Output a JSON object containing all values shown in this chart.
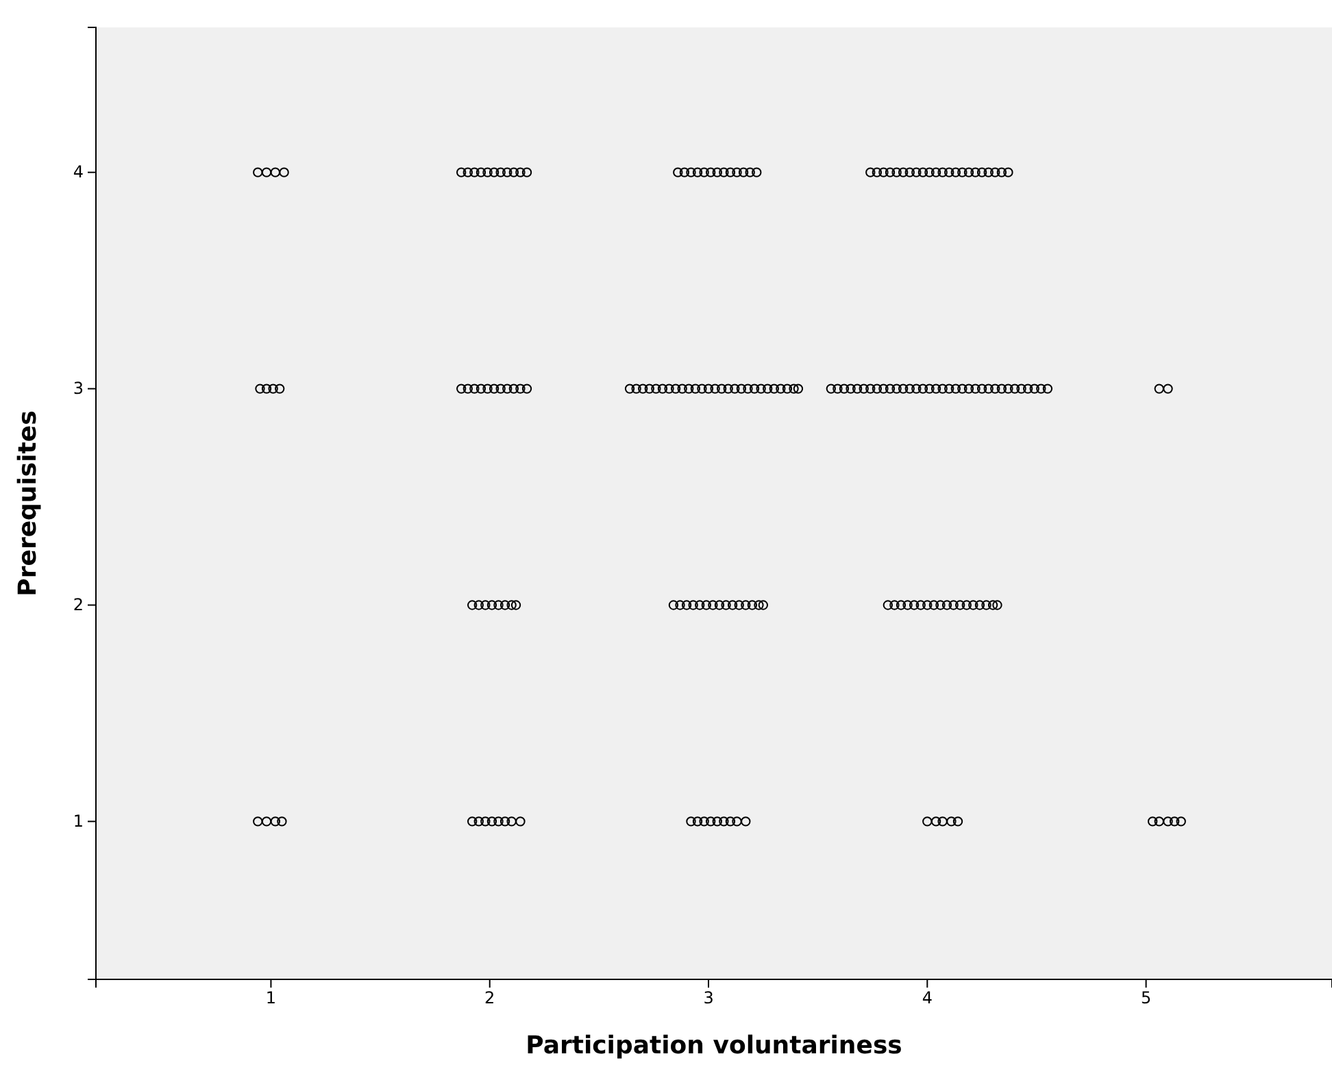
{
  "chart_data": {
    "type": "scatter",
    "xlabel": "Participation voluntariness",
    "ylabel": "Prerequisites",
    "xlim": [
      0.2,
      5.85
    ],
    "ylim": [
      0.27,
      4.67
    ],
    "xticks": [
      1,
      2,
      3,
      4,
      5
    ],
    "yticks": [
      1,
      2,
      3,
      4
    ],
    "marker": "circle",
    "series": [
      {
        "color": "#000000",
        "x": [
          0.94,
          0.98,
          1.02,
          1.06,
          1.87,
          1.9,
          1.93,
          1.96,
          1.99,
          2.02,
          2.05,
          2.08,
          2.11,
          2.14,
          2.17,
          2.86,
          2.89,
          2.92,
          2.95,
          2.98,
          3.01,
          3.04,
          3.07,
          3.1,
          3.13,
          3.16,
          3.19,
          3.22,
          3.74,
          3.77,
          3.8,
          3.83,
          3.86,
          3.89,
          3.92,
          3.95,
          3.98,
          4.01,
          4.04,
          4.07,
          4.1,
          4.13,
          4.16,
          4.19,
          4.22,
          4.25,
          4.28,
          4.31,
          4.34,
          4.37
        ],
        "values": [
          4,
          4,
          4,
          4,
          4,
          4,
          4,
          4,
          4,
          4,
          4,
          4,
          4,
          4,
          4,
          4,
          4,
          4,
          4,
          4,
          4,
          4,
          4,
          4,
          4,
          4,
          4,
          4,
          4,
          4,
          4,
          4,
          4,
          4,
          4,
          4,
          4,
          4,
          4,
          4,
          4,
          4,
          4,
          4,
          4,
          4,
          4,
          4,
          4,
          4
        ]
      },
      {
        "color": "#000000",
        "x": [
          0.95,
          0.98,
          1.01,
          1.04,
          1.87,
          1.9,
          1.93,
          1.96,
          1.99,
          2.02,
          2.05,
          2.08,
          2.11,
          2.14,
          2.17,
          2.64,
          2.67,
          2.7,
          2.73,
          2.76,
          2.79,
          2.82,
          2.85,
          2.88,
          2.91,
          2.94,
          2.97,
          3.0,
          3.03,
          3.06,
          3.09,
          3.12,
          3.15,
          3.18,
          3.21,
          3.24,
          3.27,
          3.3,
          3.33,
          3.36,
          3.39,
          3.41,
          3.56,
          3.59,
          3.62,
          3.65,
          3.68,
          3.71,
          3.74,
          3.77,
          3.8,
          3.83,
          3.86,
          3.89,
          3.92,
          3.95,
          3.98,
          4.01,
          4.04,
          4.07,
          4.1,
          4.13,
          4.16,
          4.19,
          4.22,
          4.25,
          4.28,
          4.31,
          4.34,
          4.37,
          4.4,
          4.43,
          4.46,
          4.49,
          4.52,
          4.55,
          5.06,
          5.1
        ],
        "values": [
          3,
          3,
          3,
          3,
          3,
          3,
          3,
          3,
          3,
          3,
          3,
          3,
          3,
          3,
          3,
          3,
          3,
          3,
          3,
          3,
          3,
          3,
          3,
          3,
          3,
          3,
          3,
          3,
          3,
          3,
          3,
          3,
          3,
          3,
          3,
          3,
          3,
          3,
          3,
          3,
          3,
          3,
          3,
          3,
          3,
          3,
          3,
          3,
          3,
          3,
          3,
          3,
          3,
          3,
          3,
          3,
          3,
          3,
          3,
          3,
          3,
          3,
          3,
          3,
          3,
          3,
          3,
          3,
          3,
          3,
          3,
          3,
          3,
          3,
          3,
          3,
          3,
          3
        ]
      },
      {
        "color": "#000000",
        "x": [
          1.92,
          1.95,
          1.98,
          2.01,
          2.04,
          2.07,
          2.1,
          2.12,
          2.84,
          2.87,
          2.9,
          2.93,
          2.96,
          2.99,
          3.02,
          3.05,
          3.08,
          3.11,
          3.14,
          3.17,
          3.2,
          3.23,
          3.25,
          3.82,
          3.85,
          3.88,
          3.91,
          3.94,
          3.97,
          4.0,
          4.03,
          4.06,
          4.09,
          4.12,
          4.15,
          4.18,
          4.21,
          4.24,
          4.27,
          4.3,
          4.32
        ],
        "values": [
          2,
          2,
          2,
          2,
          2,
          2,
          2,
          2,
          2,
          2,
          2,
          2,
          2,
          2,
          2,
          2,
          2,
          2,
          2,
          2,
          2,
          2,
          2,
          2,
          2,
          2,
          2,
          2,
          2,
          2,
          2,
          2,
          2,
          2,
          2,
          2,
          2,
          2,
          2,
          2,
          2
        ]
      },
      {
        "color": "#000000",
        "x": [
          0.94,
          0.98,
          1.02,
          1.05,
          1.92,
          1.95,
          1.98,
          2.01,
          2.04,
          2.07,
          2.1,
          2.14,
          2.92,
          2.95,
          2.98,
          3.01,
          3.04,
          3.07,
          3.1,
          3.13,
          3.17,
          4.0,
          4.04,
          4.07,
          4.11,
          4.14,
          5.03,
          5.06,
          5.1,
          5.13,
          5.16
        ],
        "values": [
          1,
          1,
          1,
          1,
          1,
          1,
          1,
          1,
          1,
          1,
          1,
          1,
          1,
          1,
          1,
          1,
          1,
          1,
          1,
          1,
          1,
          1,
          1,
          1,
          1,
          1,
          1,
          1,
          1,
          1,
          1
        ]
      }
    ]
  }
}
